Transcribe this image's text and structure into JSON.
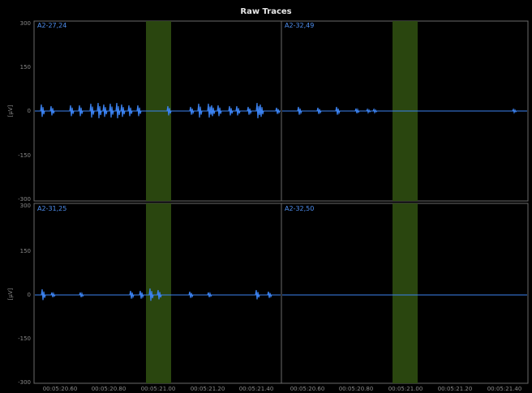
{
  "title": "Raw Traces",
  "panels": [
    {
      "label": "A2-27,24"
    },
    {
      "label": "A2-32,49"
    },
    {
      "label": "A2-31,25"
    },
    {
      "label": "A2-32,50"
    }
  ],
  "y_axis": {
    "unit": "[µV]",
    "ticks": [
      "300",
      "150",
      "0",
      "-150",
      "-300"
    ]
  },
  "x_axis": {
    "left_ticks": [
      "00:05:20.60",
      "00:05:20.80",
      "00:05:21.00",
      "00:05:21.20",
      "00:05:21.40"
    ],
    "right_ticks": [
      "00:05:20.60",
      "00:05:20.80",
      "00:05:21.00",
      "00:05:21.20",
      "00:05:21.40"
    ]
  },
  "colors": {
    "trace": "#3b82f0",
    "highlight": "#2c4a10",
    "axis": "#6a6a6a",
    "label": "#4f8ff0"
  }
}
